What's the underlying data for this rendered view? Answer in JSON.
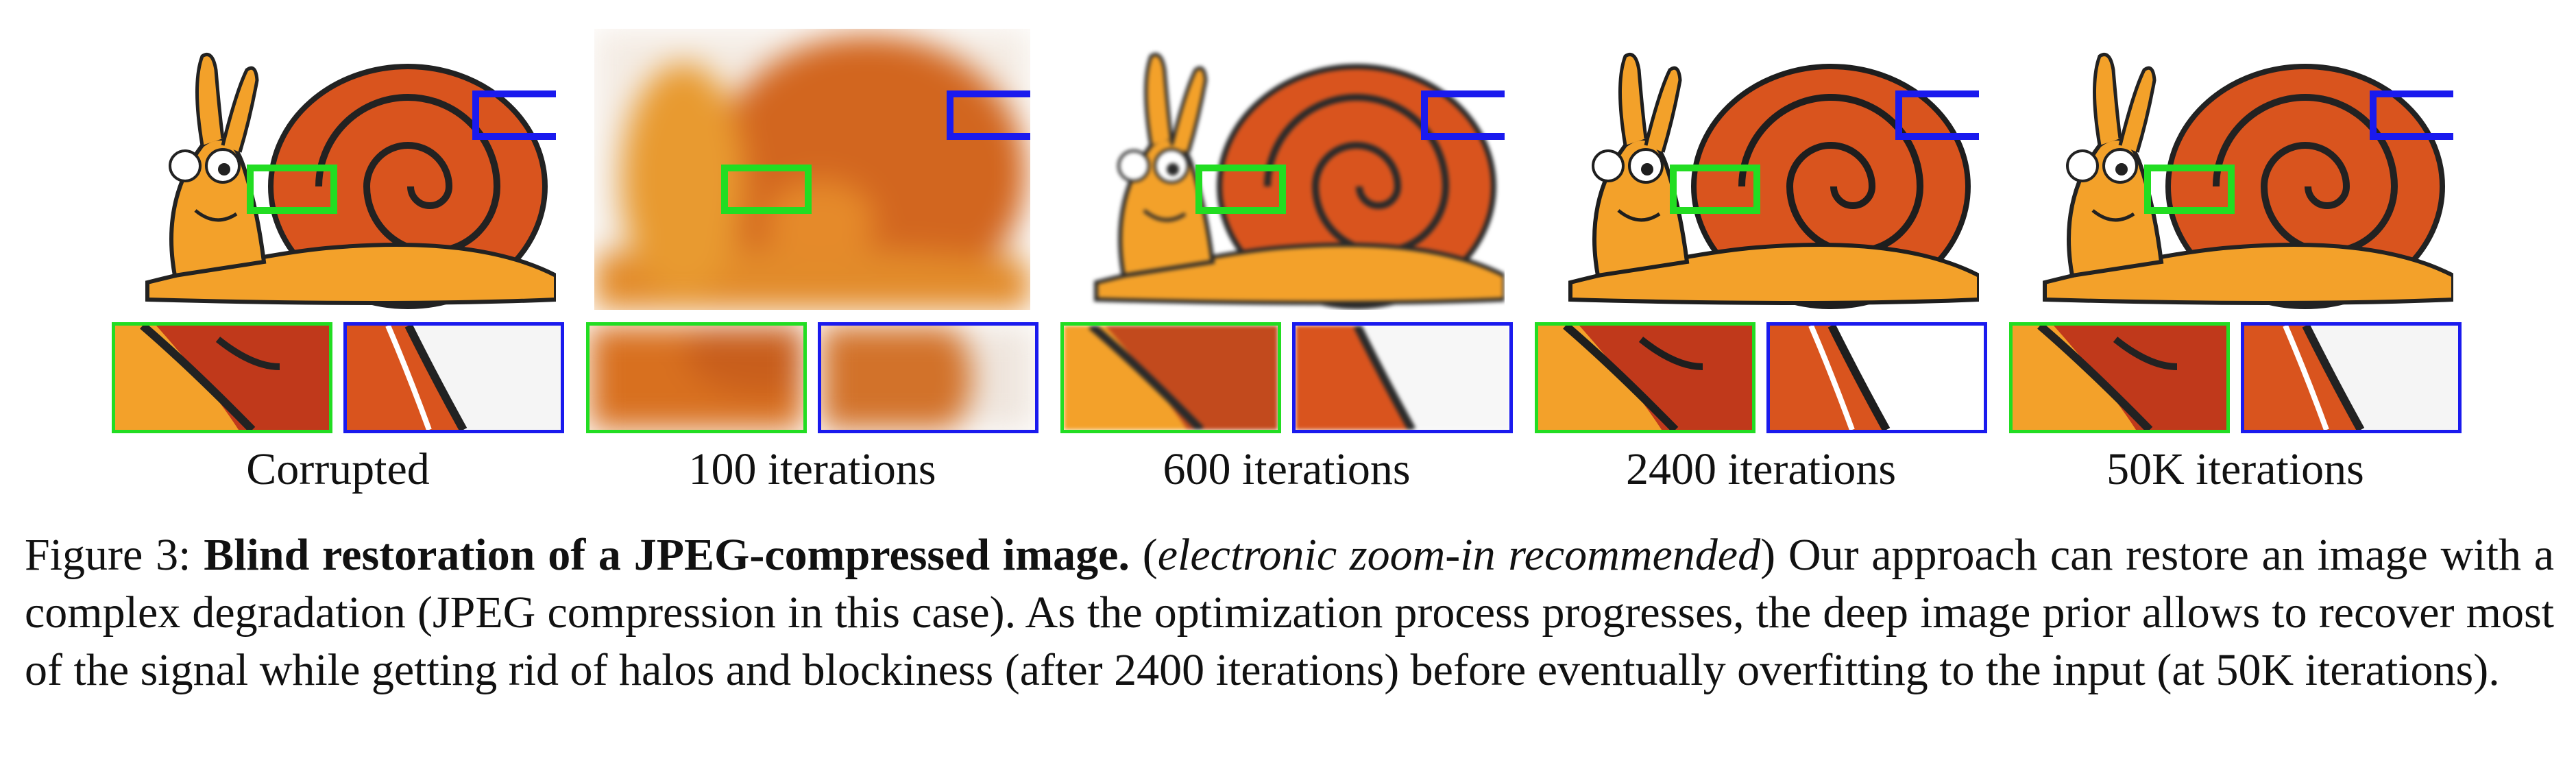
{
  "panels": [
    {
      "label": "Corrupted"
    },
    {
      "label": "100 iterations"
    },
    {
      "label": "600 iterations"
    },
    {
      "label": "2400 iterations"
    },
    {
      "label": "50K iterations"
    }
  ],
  "caption": {
    "figure_label": "Figure 3:",
    "bold_title": "Blind restoration of a JPEG-compressed image.",
    "italic_note": "electronic zoom-in recommended",
    "body": "Our approach can restore an image with a complex degradation (JPEG compression in this case). As the optimization process progresses, the deep image prior allows to recover most of the signal while getting rid of halos and blockiness (after 2400 iterations) before eventually overfitting to the input (at 50K iterations)."
  },
  "colors": {
    "zoom_green": "#22dd22",
    "zoom_blue": "#1a1aee",
    "snail_shell": "#d9541e",
    "snail_body": "#f3a12a"
  },
  "image_subject": "cartoon-snail"
}
